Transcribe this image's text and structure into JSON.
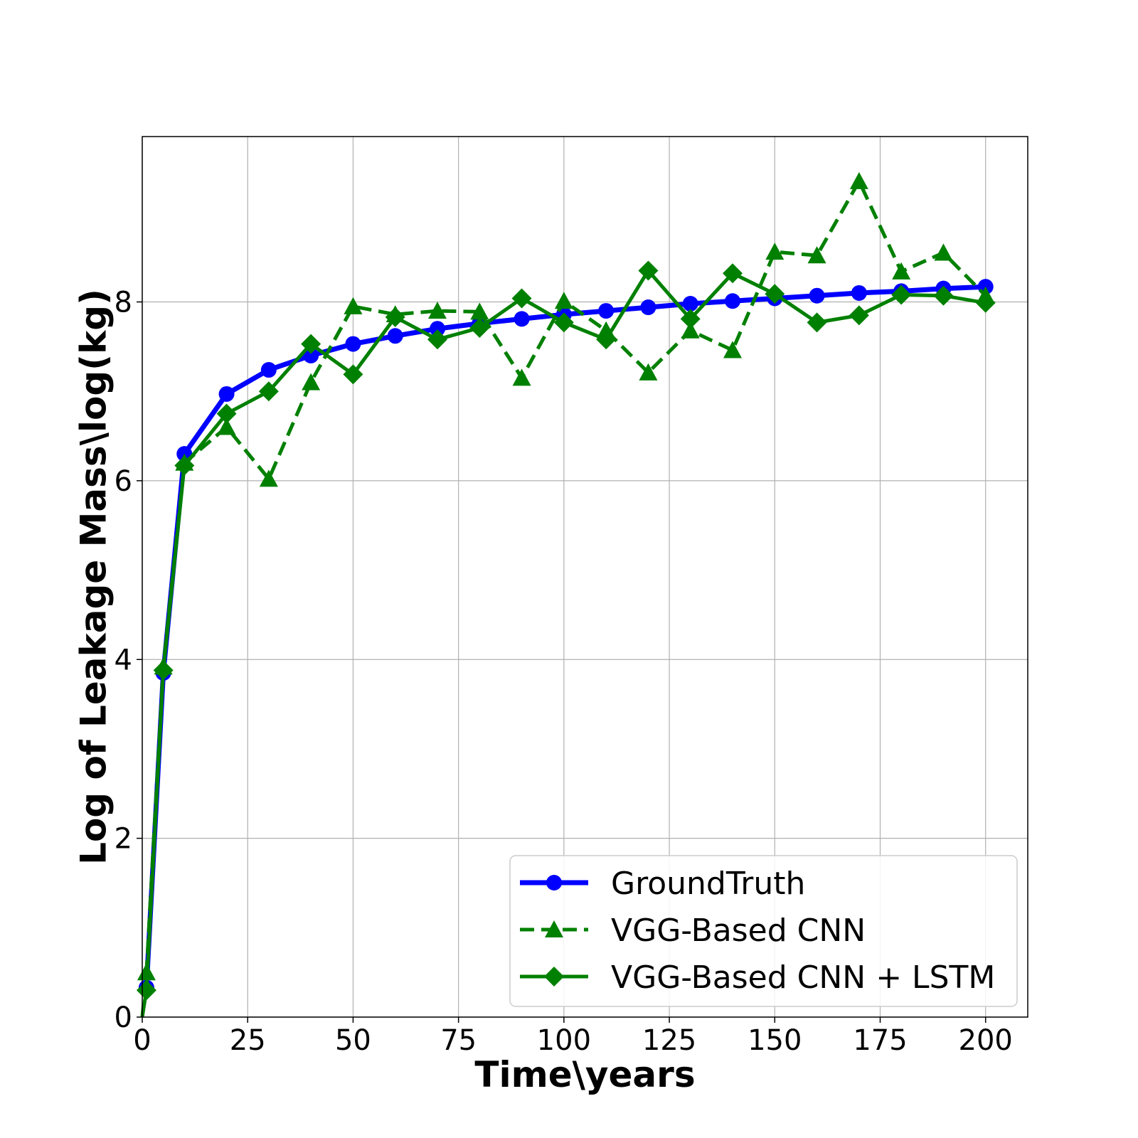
{
  "chart_data": {
    "type": "line",
    "xlabel": "Time\\years",
    "ylabel": "Log of Leakage Mass\\log(kg)",
    "xlim": [
      0,
      210
    ],
    "ylim": [
      0,
      9.85
    ],
    "xticks": [
      0,
      25,
      50,
      75,
      100,
      125,
      150,
      175,
      200
    ],
    "yticks": [
      0,
      2,
      4,
      6,
      8
    ],
    "grid": true,
    "legend_position": "lower-right",
    "series": [
      {
        "name": "GroundTruth",
        "color": "#0000ff",
        "linestyle": "solid",
        "marker": "circle",
        "x": [
          1,
          5,
          10,
          20,
          30,
          40,
          50,
          60,
          70,
          80,
          90,
          100,
          110,
          120,
          130,
          140,
          150,
          160,
          170,
          180,
          190,
          200
        ],
        "y": [
          0.33,
          3.85,
          6.3,
          6.97,
          7.24,
          7.4,
          7.53,
          7.62,
          7.7,
          7.76,
          7.81,
          7.86,
          7.9,
          7.94,
          7.98,
          8.01,
          8.04,
          8.07,
          8.1,
          8.12,
          8.15,
          8.17
        ]
      },
      {
        "name": "VGG-Based CNN",
        "color": "#008000",
        "linestyle": "dashed",
        "marker": "triangle",
        "x": [
          0,
          1,
          5,
          10,
          20,
          30,
          40,
          50,
          60,
          70,
          80,
          90,
          100,
          110,
          120,
          130,
          140,
          150,
          160,
          170,
          180,
          190,
          200
        ],
        "y": [
          0.0,
          0.5,
          3.92,
          6.2,
          6.6,
          6.02,
          7.1,
          7.95,
          7.86,
          7.9,
          7.89,
          7.15,
          8.01,
          7.68,
          7.21,
          7.68,
          7.46,
          8.56,
          8.52,
          9.35,
          8.34,
          8.55,
          8.07
        ]
      },
      {
        "name": "VGG-Based CNN + LSTM",
        "color": "#008000",
        "linestyle": "solid",
        "marker": "diamond",
        "x": [
          0,
          1,
          5,
          10,
          20,
          30,
          40,
          50,
          60,
          70,
          80,
          90,
          100,
          110,
          120,
          130,
          140,
          150,
          160,
          170,
          180,
          190,
          200
        ],
        "y": [
          0.0,
          0.3,
          3.88,
          6.17,
          6.75,
          7.0,
          7.53,
          7.19,
          7.83,
          7.58,
          7.71,
          8.04,
          7.77,
          7.58,
          8.35,
          7.81,
          8.32,
          8.09,
          7.77,
          7.85,
          8.08,
          8.07,
          7.99
        ]
      }
    ]
  }
}
